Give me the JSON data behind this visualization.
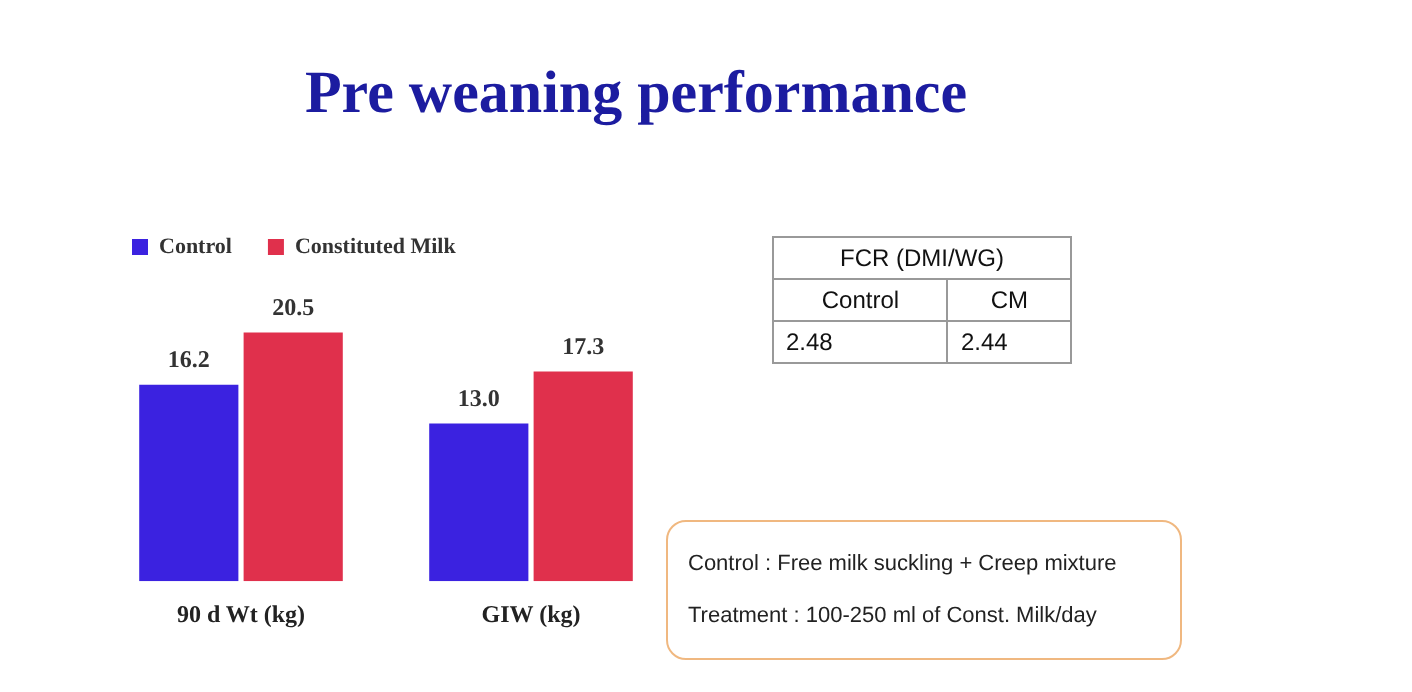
{
  "chart_data": [
    {
      "type": "bar",
      "title": "Pre weaning performance",
      "categories": [
        "90 d Wt (kg)",
        "GIW (kg)"
      ],
      "series": [
        {
          "name": "Control",
          "color": "#3b22e0",
          "values": [
            16.2,
            13.0
          ],
          "value_labels": [
            "16.2",
            "13.0"
          ]
        },
        {
          "name": "Constituted Milk",
          "color": "#e0304c",
          "values": [
            20.5,
            17.3
          ]
        }
      ],
      "data_labels": true,
      "legend": "top left",
      "annotations": [
        "Control : Free milk suckling + Creep mixture",
        "Treatment : 100-250 ml of  Const. Milk/day"
      ]
    },
    {
      "type": "other",
      "title": "FCR (DMI/WG)",
      "categories": [
        "Control",
        "CM"
      ],
      "values": [
        2.48,
        2.44
      ],
      "data_labels": true
    }
  ]
}
